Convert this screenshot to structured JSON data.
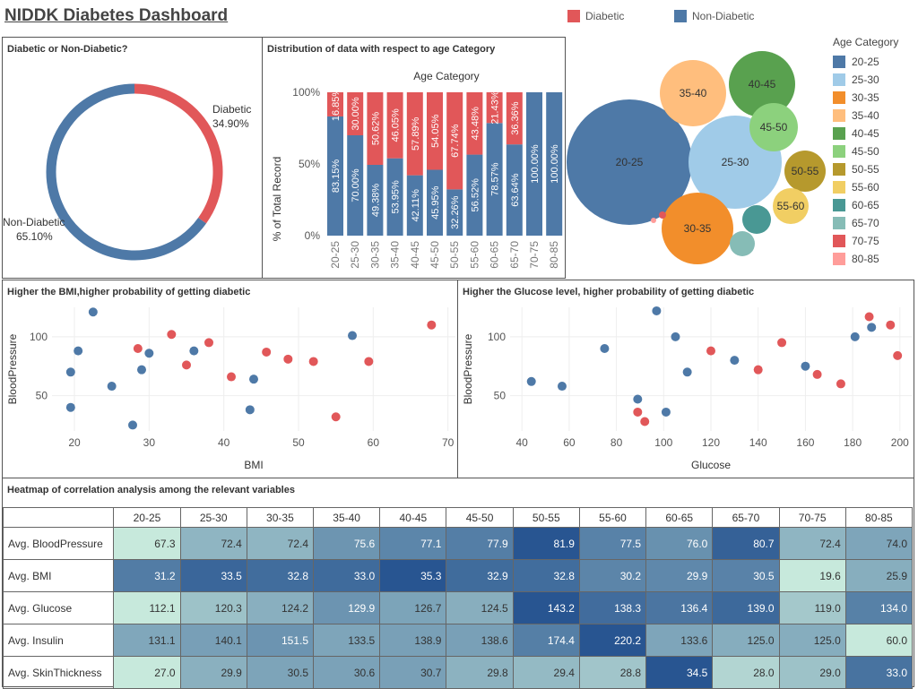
{
  "title": "NIDDK Diabetes Dashboard",
  "legend": {
    "diabetic": {
      "label": "Diabetic",
      "color": "#e15759"
    },
    "nondiabetic": {
      "label": "Non-Diabetic",
      "color": "#4e79a7"
    }
  },
  "donut": {
    "title": "Diabetic or Non-Diabetic?",
    "diabetic_label": "Diabetic",
    "diabetic_pct": "34.90%",
    "nondiabetic_label": "Non-Diabetic",
    "nondiabetic_pct": "65.10%"
  },
  "stacked": {
    "title": "Distribution of data with respect to age Category",
    "header": "Age Category",
    "ylabel": "% of Total Record",
    "yticks": [
      "100%",
      "50%",
      "0%"
    ]
  },
  "bubble_legend": {
    "title": "Age Category",
    "items": [
      {
        "label": "20-25",
        "color": "#4e79a7"
      },
      {
        "label": "25-30",
        "color": "#a0cbe8"
      },
      {
        "label": "30-35",
        "color": "#f28e2b"
      },
      {
        "label": "35-40",
        "color": "#ffbe7d"
      },
      {
        "label": "40-45",
        "color": "#59a14f"
      },
      {
        "label": "45-50",
        "color": "#8cd17d"
      },
      {
        "label": "50-55",
        "color": "#b6992d"
      },
      {
        "label": "55-60",
        "color": "#f1ce63"
      },
      {
        "label": "60-65",
        "color": "#499894"
      },
      {
        "label": "65-70",
        "color": "#86bcb6"
      },
      {
        "label": "70-75",
        "color": "#e15759"
      },
      {
        "label": "80-85",
        "color": "#ff9d9a"
      }
    ]
  },
  "scatter_bmi": {
    "title": "Higher the BMI,higher probability of getting diabetic",
    "xlabel": "BMI",
    "ylabel": "BloodPressure",
    "xticks": [
      20,
      30,
      40,
      50,
      60,
      70
    ],
    "yticks": [
      50,
      100
    ]
  },
  "scatter_glucose": {
    "title": "Higher the Glucose level, higher probability of getting diabetic",
    "xlabel": "Glucose",
    "ylabel": "BloodPressure",
    "xticks": [
      40,
      60,
      80,
      100,
      120,
      140,
      160,
      180,
      200
    ],
    "yticks": [
      50,
      100
    ]
  },
  "heatmap": {
    "title": "Heatmap of correlation analysis among the relevant variables",
    "columns": [
      "20-25",
      "25-30",
      "30-35",
      "35-40",
      "40-45",
      "45-50",
      "50-55",
      "55-60",
      "60-65",
      "65-70",
      "70-75",
      "80-85"
    ],
    "rows": [
      {
        "label": "Avg. BloodPressure",
        "values": [
          "67.3",
          "72.4",
          "72.4",
          "75.6",
          "77.1",
          "77.9",
          "81.9",
          "77.5",
          "76.0",
          "80.7",
          "72.4",
          "74.0"
        ]
      },
      {
        "label": "Avg. BMI",
        "values": [
          "31.2",
          "33.5",
          "32.8",
          "33.0",
          "35.3",
          "32.9",
          "32.8",
          "30.2",
          "29.9",
          "30.5",
          "19.6",
          "25.9"
        ]
      },
      {
        "label": "Avg. Glucose",
        "values": [
          "112.1",
          "120.3",
          "124.2",
          "129.9",
          "126.7",
          "124.5",
          "143.2",
          "138.3",
          "136.4",
          "139.0",
          "119.0",
          "134.0"
        ]
      },
      {
        "label": "Avg. Insulin",
        "values": [
          "131.1",
          "140.1",
          "151.5",
          "133.5",
          "138.9",
          "138.6",
          "174.4",
          "220.2",
          "133.6",
          "125.0",
          "125.0",
          "60.0"
        ]
      },
      {
        "label": "Avg. SkinThickness",
        "values": [
          "27.0",
          "29.9",
          "30.5",
          "30.6",
          "30.7",
          "29.8",
          "29.4",
          "28.8",
          "34.5",
          "28.0",
          "29.0",
          "33.0"
        ]
      }
    ]
  },
  "chart_data": [
    {
      "type": "pie",
      "title": "Diabetic or Non-Diabetic?",
      "categories": [
        "Diabetic",
        "Non-Diabetic"
      ],
      "values": [
        34.9,
        65.1
      ]
    },
    {
      "type": "bar",
      "title": "Distribution of data with respect to age Category",
      "stacked": true,
      "ylabel": "% of Total Record",
      "ylim": [
        0,
        100
      ],
      "categories": [
        "20-25",
        "25-30",
        "30-35",
        "35-40",
        "40-45",
        "45-50",
        "50-55",
        "55-60",
        "60-65",
        "65-70",
        "70-75",
        "80-85"
      ],
      "series": [
        {
          "name": "Non-Diabetic",
          "values": [
            83.15,
            70.0,
            49.38,
            53.95,
            42.11,
            45.95,
            32.26,
            56.52,
            78.57,
            63.64,
            100.0,
            100.0
          ]
        },
        {
          "name": "Diabetic",
          "values": [
            16.85,
            30.0,
            50.62,
            46.05,
            57.89,
            54.05,
            67.74,
            43.48,
            21.43,
            36.36,
            0,
            0
          ]
        }
      ]
    },
    {
      "type": "scatter",
      "title": "Age Category",
      "categories": [
        "20-25",
        "25-30",
        "30-35",
        "35-40",
        "40-45",
        "45-50",
        "50-55",
        "55-60",
        "60-65",
        "65-70",
        "70-75",
        "80-85"
      ],
      "bubble_size_relative": [
        70,
        52,
        40,
        37,
        37,
        27,
        23,
        20,
        16,
        14,
        4,
        3
      ]
    },
    {
      "type": "scatter",
      "title": "Higher the BMI,higher probability of getting diabetic",
      "xlabel": "BMI",
      "ylabel": "BloodPressure",
      "xlim": [
        17,
        71
      ],
      "ylim": [
        20,
        125
      ],
      "series": [
        {
          "name": "Non-Diabetic",
          "points": [
            [
              22.5,
              121
            ],
            [
              27.8,
              25
            ],
            [
              57.2,
              101
            ],
            [
              43.5,
              38
            ],
            [
              20.5,
              88
            ],
            [
              19.5,
              70
            ],
            [
              19.5,
              40
            ],
            [
              25,
              58
            ],
            [
              30,
              86
            ],
            [
              36,
              88
            ],
            [
              44,
              64
            ],
            [
              29,
              72
            ]
          ]
        },
        {
          "name": "Diabetic",
          "points": [
            [
              67.8,
              110
            ],
            [
              59.4,
              79
            ],
            [
              55,
              32
            ],
            [
              45.7,
              87
            ],
            [
              48.6,
              81
            ],
            [
              38,
              95
            ],
            [
              33,
              102
            ],
            [
              35,
              76
            ],
            [
              41,
              66
            ],
            [
              28.5,
              90
            ],
            [
              52,
              79
            ]
          ]
        }
      ]
    },
    {
      "type": "scatter",
      "title": "Higher the Glucose level, higher probability of getting diabetic",
      "xlabel": "Glucose",
      "ylabel": "BloodPressure",
      "xlim": [
        35,
        205
      ],
      "ylim": [
        20,
        125
      ],
      "series": [
        {
          "name": "Non-Diabetic",
          "points": [
            [
              44,
              62
            ],
            [
              57,
              58
            ],
            [
              97,
              122
            ],
            [
              105,
              100
            ],
            [
              89,
              47
            ],
            [
              101,
              36
            ],
            [
              181,
              100
            ],
            [
              188,
              108
            ],
            [
              75,
              90
            ],
            [
              110,
              70
            ],
            [
              130,
              80
            ],
            [
              160,
              75
            ]
          ]
        },
        {
          "name": "Diabetic",
          "points": [
            [
              89,
              36
            ],
            [
              92,
              28
            ],
            [
              187,
              117
            ],
            [
              196,
              110
            ],
            [
              199,
              84
            ],
            [
              175,
              60
            ],
            [
              150,
              95
            ],
            [
              120,
              88
            ],
            [
              165,
              68
            ],
            [
              140,
              72
            ]
          ]
        }
      ]
    }
  ]
}
